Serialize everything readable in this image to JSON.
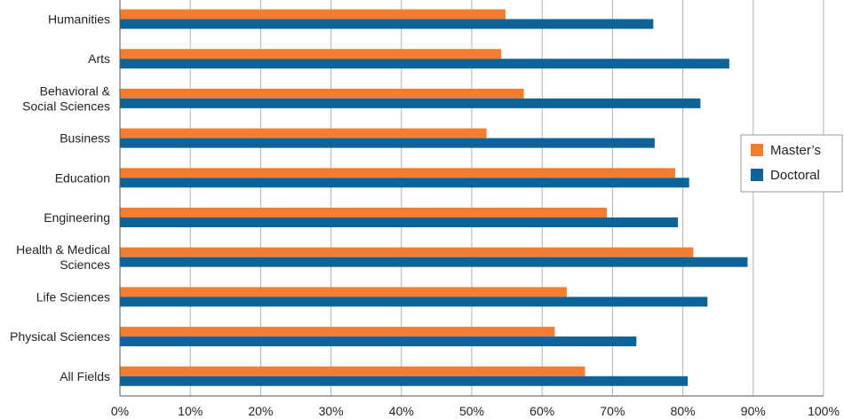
{
  "chart_data": {
    "type": "bar",
    "orientation": "horizontal",
    "title": "",
    "xlabel": "",
    "ylabel": "",
    "xlim": [
      0,
      100
    ],
    "x_ticks": [
      "0%",
      "10%",
      "20%",
      "30%",
      "40%",
      "50%",
      "60%",
      "70%",
      "80%",
      "90%",
      "100%"
    ],
    "grid": "vertical",
    "legend_position": "right",
    "categories": [
      [
        "Humanities"
      ],
      [
        "Arts"
      ],
      [
        "Behavioral &",
        "Social Sciences"
      ],
      [
        "Business"
      ],
      [
        "Education"
      ],
      [
        "Engineering"
      ],
      [
        "Health & Medical",
        "Sciences"
      ],
      [
        "Life Sciences"
      ],
      [
        "Physical Sciences"
      ],
      [
        "All Fields"
      ]
    ],
    "series": [
      {
        "name": "Master’s",
        "color": "#F47D31",
        "values": [
          54.8,
          54.2,
          57.4,
          52.1,
          78.9,
          69.2,
          81.5,
          63.5,
          61.8,
          66.1
        ]
      },
      {
        "name": "Doctoral",
        "color": "#0E6497",
        "values": [
          75.8,
          86.6,
          82.5,
          76.0,
          80.9,
          79.3,
          89.2,
          83.5,
          73.4,
          80.7
        ]
      }
    ]
  }
}
